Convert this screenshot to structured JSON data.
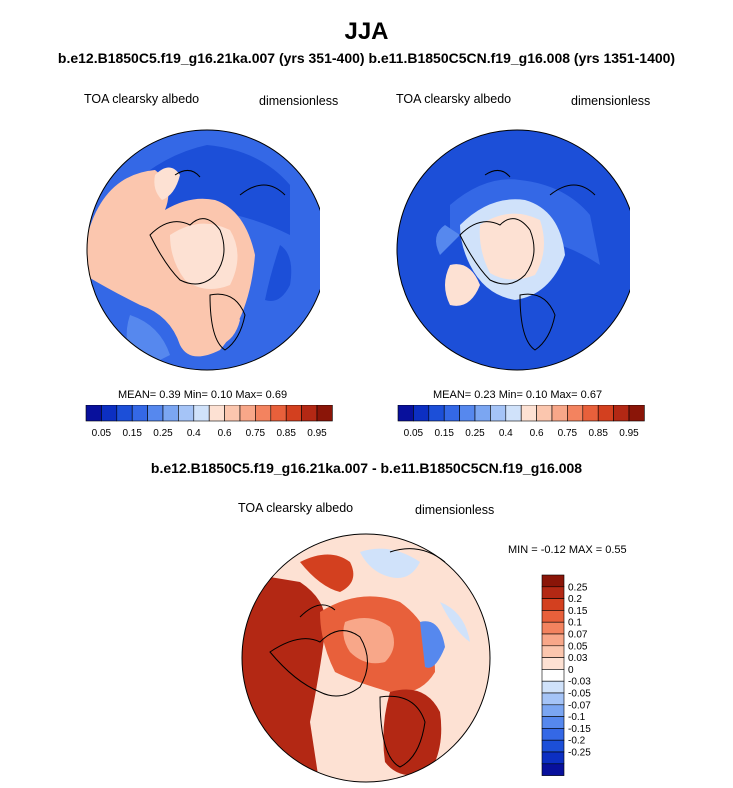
{
  "title": "JJA",
  "subtitle": "b.e12.B1850C5.f19_g16.21ka.007 (yrs 351-400) b.e11.B1850C5CN.f19_g16.008 (yrs 1351-1400)",
  "panels": {
    "left": {
      "variable_label": "TOA clearsky albedo",
      "units_label": "dimensionless",
      "stats": "MEAN=   0.39  Min=   0.10  Max=   0.69"
    },
    "right": {
      "variable_label": "TOA clearsky albedo",
      "units_label": "dimensionless",
      "stats": "MEAN=   0.23  Min=   0.10  Max=   0.67"
    },
    "diff": {
      "title": "b.e12.B1850C5.f19_g16.21ka.007 - b.e11.B1850C5CN.f19_g16.008",
      "variable_label": "TOA clearsky albedo",
      "units_label": "dimensionless",
      "stats": "MIN =  -0.12  MAX =   0.55"
    }
  },
  "colorbars": {
    "abs": {
      "colors": [
        "#08109c",
        "#0c2fc2",
        "#1c4fd8",
        "#3468e6",
        "#5688ee",
        "#7ba6f2",
        "#a5c4f7",
        "#d0e2fa",
        "#fde1d3",
        "#fbc6ae",
        "#f8a789",
        "#f3835f",
        "#e8603b",
        "#d3401f",
        "#b32814",
        "#8a1508"
      ],
      "tick_labels": [
        "0.05",
        "0.15",
        "0.25",
        "0.4",
        "0.6",
        "0.75",
        "0.85",
        "0.95"
      ]
    },
    "diff": {
      "colors": [
        "#08109c",
        "#0c2fc2",
        "#1c4fd8",
        "#3468e6",
        "#5688ee",
        "#7ba6f2",
        "#a5c4f7",
        "#d0e2fa",
        "#ffffff",
        "#fde1d3",
        "#fbc6ae",
        "#f8a789",
        "#f3835f",
        "#e8603b",
        "#d3401f",
        "#b32814",
        "#8a1508"
      ],
      "tick_labels": [
        "-0.25",
        "-0.2",
        "-0.15",
        "-0.1",
        "-0.07",
        "-0.05",
        "-0.03",
        "0",
        "0.03",
        "0.05",
        "0.07",
        "0.1",
        "0.15",
        "0.2",
        "0.25"
      ]
    }
  }
}
